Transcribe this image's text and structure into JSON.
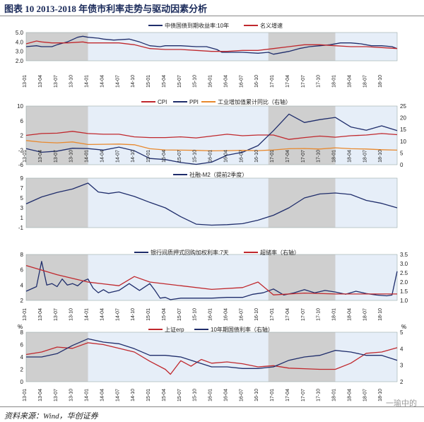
{
  "title": "图表 10    2013-2018 年债市利率走势与驱动因素分析",
  "source": "资料来源：Wind，华创证券",
  "watermark": "一瑜中的",
  "colors": {
    "navy": "#1f2d6b",
    "red": "#c0282d",
    "orange": "#e8892e",
    "shade": "#cfcfcf",
    "blue_bg": "#e6eef8"
  },
  "x_tick_labels": [
    "13-01",
    "13-04",
    "13-07",
    "13-10",
    "14-01",
    "14-04",
    "14-07",
    "14-10",
    "15-01",
    "15-04",
    "15-07",
    "15-10",
    "16-01",
    "16-04",
    "16-07",
    "16-10",
    "17-01",
    "17-04",
    "17-07",
    "17-10",
    "18-01",
    "18-04",
    "18-07",
    "18-10"
  ],
  "chart_data": [
    {
      "type": "line",
      "id": "p1",
      "series": [
        {
          "name": "中债国债到期收益率:10年",
          "color": "#1f2d6b",
          "x": [
            0,
            2,
            3,
            5,
            6,
            8,
            10,
            11,
            12,
            14,
            15,
            17,
            20,
            22,
            24,
            26,
            27,
            30,
            33,
            35,
            37,
            38,
            40,
            42,
            45,
            47,
            48,
            51,
            53,
            55,
            57,
            59,
            61,
            63,
            65,
            67,
            69,
            71,
            72
          ],
          "y": [
            3.5,
            3.6,
            3.5,
            3.5,
            3.7,
            4.0,
            4.5,
            4.6,
            4.5,
            4.4,
            4.3,
            4.2,
            4.3,
            4.0,
            3.6,
            3.5,
            3.6,
            3.6,
            3.5,
            3.5,
            3.2,
            2.9,
            2.9,
            2.9,
            2.8,
            2.9,
            2.7,
            3.0,
            3.3,
            3.5,
            3.6,
            3.7,
            3.9,
            3.9,
            3.8,
            3.6,
            3.6,
            3.5,
            3.3
          ]
        },
        {
          "name": "名义增速",
          "color": "#c0282d",
          "x": [
            0,
            2,
            3,
            5,
            8,
            11,
            12,
            15,
            18,
            21,
            24,
            27,
            30,
            33,
            36,
            39,
            42,
            45,
            48,
            51,
            54,
            57,
            60,
            63,
            66,
            69,
            72
          ],
          "y": [
            3.8,
            4.1,
            4.0,
            3.9,
            3.9,
            4.0,
            3.9,
            3.9,
            3.9,
            3.7,
            3.3,
            3.2,
            3.2,
            3.1,
            3.0,
            3.0,
            3.1,
            3.1,
            3.3,
            3.5,
            3.7,
            3.7,
            3.6,
            3.5,
            3.5,
            3.4,
            3.3
          ]
        }
      ],
      "ylim": [
        2.0,
        5.0
      ],
      "yticks": [
        "2.0",
        "3.0",
        "4.0",
        "5.0"
      ]
    },
    {
      "type": "line",
      "id": "p2",
      "series": [
        {
          "name": "CPI",
          "color": "#c0282d",
          "x": [
            0,
            3,
            6,
            9,
            12,
            15,
            18,
            21,
            24,
            27,
            30,
            33,
            36,
            39,
            42,
            45,
            48,
            51,
            54,
            57,
            60,
            63,
            66,
            69,
            72
          ],
          "y": [
            2.0,
            2.5,
            2.6,
            3.1,
            2.5,
            2.3,
            2.3,
            1.6,
            1.4,
            1.4,
            1.6,
            1.3,
            1.8,
            2.3,
            1.9,
            2.1,
            2.1,
            0.9,
            1.4,
            1.8,
            1.5,
            1.9,
            2.1,
            2.5,
            2.2
          ]
        },
        {
          "name": "PPI",
          "color": "#1f2d6b",
          "x": [
            0,
            3,
            6,
            9,
            12,
            15,
            18,
            21,
            24,
            27,
            30,
            33,
            36,
            39,
            42,
            45,
            48,
            51,
            54,
            57,
            60,
            63,
            66,
            69,
            72
          ],
          "y": [
            -1.6,
            -2.6,
            -2.3,
            -1.5,
            -1.6,
            -2.0,
            -1.2,
            -2.2,
            -4.3,
            -4.6,
            -5.4,
            -5.9,
            -5.3,
            -3.4,
            -2.6,
            -0.8,
            3.3,
            7.8,
            5.5,
            6.3,
            6.9,
            4.3,
            3.4,
            4.6,
            3.3
          ]
        },
        {
          "name": "工业增加值累计同比（右轴）",
          "color": "#e8892e",
          "x": [
            0,
            3,
            6,
            9,
            12,
            15,
            18,
            21,
            24,
            27,
            30,
            33,
            36,
            39,
            42,
            45,
            48,
            51,
            54,
            57,
            60,
            63,
            66,
            69,
            72
          ],
          "y": [
            10.3,
            9.6,
            9.3,
            9.7,
            8.6,
            8.7,
            8.8,
            8.5,
            6.8,
            6.3,
            6.2,
            6.1,
            5.9,
            6.0,
            6.1,
            6.0,
            6.3,
            6.8,
            6.9,
            6.7,
            7.2,
            6.8,
            6.7,
            6.4,
            6.2
          ]
        }
      ],
      "ylim_left": [
        -6,
        10
      ],
      "yticks_left": [
        "-6",
        "-2",
        "2",
        "6",
        "10"
      ],
      "ylim_right": [
        0,
        25
      ],
      "yticks_right": [
        "0",
        "5",
        "10",
        "15",
        "20",
        "25"
      ]
    },
    {
      "type": "line",
      "id": "p3",
      "series": [
        {
          "name": "社融-M2（提前2季度）",
          "color": "#1f2d6b",
          "x": [
            0,
            3,
            6,
            9,
            12,
            14,
            16,
            18,
            21,
            24,
            27,
            30,
            33,
            36,
            39,
            42,
            45,
            48,
            51,
            54,
            57,
            60,
            63,
            66,
            69,
            72
          ],
          "y": [
            3.8,
            5.2,
            6.1,
            6.8,
            8.0,
            6.2,
            5.9,
            6.2,
            5.3,
            4.1,
            3.0,
            1.2,
            -0.3,
            -0.5,
            -0.4,
            -0.2,
            0.5,
            1.5,
            3.0,
            5.0,
            5.8,
            6.0,
            5.7,
            4.5,
            3.9,
            3.0
          ]
        }
      ],
      "ylim": [
        -1,
        9
      ],
      "yticks": [
        "-1",
        "1",
        "3",
        "5",
        "7",
        "9"
      ]
    },
    {
      "type": "line",
      "id": "p4",
      "series": [
        {
          "name": "银行间质押式回购加权利率:7天",
          "color": "#1f2d6b",
          "x": [
            0,
            2,
            3,
            4,
            5,
            6,
            7,
            8,
            9,
            10,
            11,
            12,
            13,
            14,
            15,
            16,
            18,
            20,
            22,
            24,
            25,
            26,
            27,
            28,
            30,
            33,
            36,
            39,
            42,
            44,
            46,
            48,
            50,
            52,
            54,
            56,
            58,
            60,
            62,
            64,
            66,
            68,
            70,
            71,
            72
          ],
          "y": [
            3.2,
            3.8,
            7.1,
            4.0,
            4.2,
            3.8,
            4.8,
            4.0,
            4.2,
            3.9,
            4.5,
            4.8,
            3.6,
            3.0,
            3.4,
            3.0,
            3.3,
            4.2,
            3.3,
            4.2,
            3.3,
            2.3,
            2.4,
            2.1,
            2.3,
            2.3,
            2.3,
            2.4,
            2.4,
            2.8,
            3.0,
            3.5,
            2.7,
            3.0,
            3.4,
            3.0,
            3.3,
            3.1,
            2.8,
            3.2,
            2.9,
            2.7,
            2.6,
            2.7,
            5.8
          ]
        },
        {
          "name": "超储率（右轴）",
          "color": "#c0282d",
          "x": [
            0,
            6,
            12,
            15,
            18,
            21,
            24,
            27,
            30,
            36,
            42,
            45,
            48,
            54,
            60,
            66,
            72
          ],
          "y": [
            2.9,
            2.4,
            2.0,
            1.9,
            1.8,
            2.3,
            2.0,
            1.9,
            1.8,
            1.6,
            1.7,
            2.0,
            1.3,
            1.4,
            1.35,
            1.35,
            1.35
          ]
        }
      ],
      "ylim_left": [
        2,
        8
      ],
      "yticks_left": [
        "2",
        "4",
        "6",
        "8"
      ],
      "ylim_right": [
        1.0,
        3.5
      ],
      "yticks_right": [
        "1.0",
        "1.5",
        "2.0",
        "2.5",
        "3.0",
        "3.5"
      ]
    },
    {
      "type": "line",
      "id": "p5",
      "left_unit": "%",
      "right_unit": "%",
      "series": [
        {
          "name": "上证erp",
          "color": "#c0282d",
          "x": [
            0,
            3,
            6,
            9,
            12,
            15,
            18,
            21,
            24,
            27,
            28,
            30,
            32,
            34,
            36,
            39,
            42,
            45,
            48,
            51,
            54,
            57,
            60,
            63,
            66,
            69,
            72
          ],
          "y": [
            4.4,
            4.8,
            5.6,
            5.4,
            6.3,
            6.0,
            5.4,
            4.8,
            3.3,
            2.0,
            1.2,
            3.4,
            2.5,
            3.6,
            3.0,
            3.2,
            2.9,
            2.4,
            2.6,
            2.2,
            2.1,
            2.0,
            2.0,
            3.0,
            4.6,
            4.8,
            5.5
          ]
        },
        {
          "name": "10年期国债利率（右轴）",
          "color": "#1f2d6b",
          "x": [
            0,
            3,
            6,
            9,
            12,
            15,
            18,
            21,
            24,
            27,
            30,
            33,
            36,
            39,
            42,
            45,
            48,
            51,
            54,
            57,
            60,
            63,
            66,
            69,
            72
          ],
          "y": [
            3.5,
            3.5,
            3.7,
            4.2,
            4.6,
            4.4,
            4.3,
            4.0,
            3.6,
            3.6,
            3.5,
            3.2,
            2.9,
            2.9,
            2.8,
            2.8,
            2.9,
            3.3,
            3.5,
            3.6,
            3.9,
            3.8,
            3.6,
            3.6,
            3.3
          ]
        }
      ],
      "ylim_left": [
        0,
        8
      ],
      "yticks_left": [
        "0",
        "2",
        "4",
        "6",
        "8"
      ],
      "ylim_right": [
        2,
        5
      ],
      "yticks_right": [
        "2",
        "3",
        "4",
        "5"
      ]
    }
  ]
}
